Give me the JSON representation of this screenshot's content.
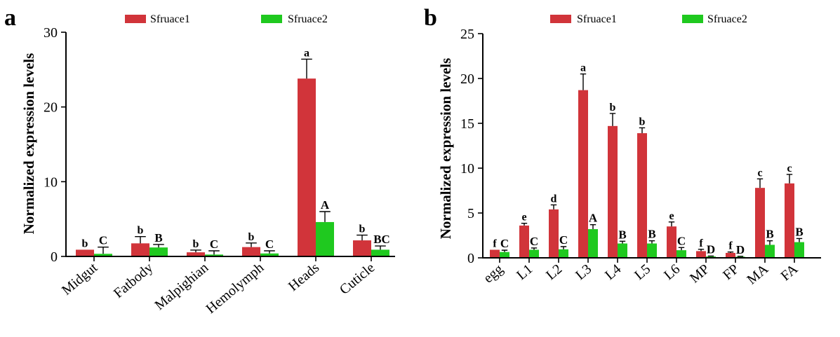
{
  "panels": [
    {
      "letter": "a"
    },
    {
      "letter": "b"
    }
  ],
  "colors": {
    "series1": "#d1343a",
    "series2": "#1fc91f"
  },
  "chart_data": [
    {
      "type": "bar",
      "ylabel": "Normalized expression levels",
      "xlabel": "",
      "ylim": [
        0,
        30
      ],
      "yticks": [
        0,
        10,
        20,
        30
      ],
      "legend_position": "top",
      "categories": [
        "Midgut",
        "Fatbody",
        "Malpighian",
        "Hemolymph",
        "Heads",
        "Cuticle"
      ],
      "series": [
        {
          "name": "Sfruace1",
          "values": [
            0.9,
            1.75,
            0.55,
            1.25,
            23.8,
            2.15
          ],
          "errors": [
            0.0,
            0.9,
            0.3,
            0.55,
            2.6,
            0.7
          ],
          "labels": [
            "b",
            "b",
            "b",
            "b",
            "a",
            "b"
          ]
        },
        {
          "name": "Sfruace2",
          "values": [
            0.35,
            1.2,
            0.25,
            0.4,
            4.6,
            0.9
          ],
          "errors": [
            0.9,
            0.4,
            0.5,
            0.35,
            1.4,
            0.5
          ],
          "labels": [
            "C",
            "B",
            "C",
            "C",
            "A",
            "BC"
          ]
        }
      ]
    },
    {
      "type": "bar",
      "ylabel": "Normalized expression levels",
      "xlabel": "",
      "ylim": [
        0,
        25
      ],
      "yticks": [
        0,
        5,
        10,
        15,
        20,
        25
      ],
      "legend_position": "top",
      "categories": [
        "egg",
        "L1",
        "L2",
        "L3",
        "L4",
        "L5",
        "L6",
        "MP",
        "FP",
        "MA",
        "FA"
      ],
      "series": [
        {
          "name": "Sfruace1",
          "values": [
            0.9,
            3.6,
            5.4,
            18.7,
            14.7,
            13.9,
            3.5,
            0.75,
            0.55,
            7.8,
            8.3
          ],
          "errors": [
            0.0,
            0.25,
            0.5,
            1.8,
            1.4,
            0.6,
            0.5,
            0.2,
            0.1,
            1.0,
            1.0
          ],
          "labels": [
            "f",
            "e",
            "d",
            "a",
            "b",
            "b",
            "e",
            "f",
            "f",
            "c",
            "c"
          ]
        },
        {
          "name": "Sfruace2",
          "values": [
            0.65,
            0.9,
            0.95,
            3.2,
            1.6,
            1.6,
            0.85,
            0.15,
            0.12,
            1.45,
            1.75
          ],
          "errors": [
            0.2,
            0.2,
            0.3,
            0.5,
            0.25,
            0.3,
            0.3,
            0.05,
            0.05,
            0.45,
            0.4
          ],
          "labels": [
            "C",
            "C",
            "C",
            "A",
            "B",
            "B",
            "C",
            "D",
            "D",
            "B",
            "B"
          ]
        }
      ]
    }
  ]
}
